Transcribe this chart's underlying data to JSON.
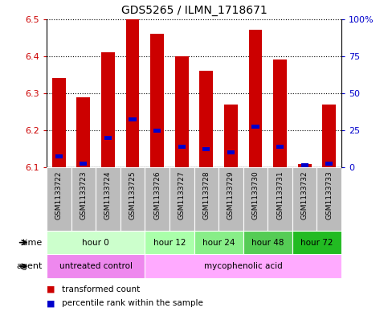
{
  "title": "GDS5265 / ILMN_1718671",
  "samples": [
    "GSM1133722",
    "GSM1133723",
    "GSM1133724",
    "GSM1133725",
    "GSM1133726",
    "GSM1133727",
    "GSM1133728",
    "GSM1133729",
    "GSM1133730",
    "GSM1133731",
    "GSM1133732",
    "GSM1133733"
  ],
  "transformed_counts": [
    6.34,
    6.29,
    6.41,
    6.5,
    6.46,
    6.4,
    6.36,
    6.27,
    6.47,
    6.39,
    6.11,
    6.27
  ],
  "percentile_ranks": [
    6.13,
    6.11,
    6.18,
    6.23,
    6.2,
    6.155,
    6.15,
    6.14,
    6.21,
    6.155,
    6.105,
    6.11
  ],
  "bar_bottom": 6.1,
  "ylim": [
    6.1,
    6.5
  ],
  "y2lim": [
    0,
    100
  ],
  "yticks": [
    6.1,
    6.2,
    6.3,
    6.4,
    6.5
  ],
  "y2ticks": [
    0,
    25,
    50,
    75,
    100
  ],
  "y2ticklabels": [
    "0",
    "25",
    "50",
    "75",
    "100%"
  ],
  "time_groups": [
    {
      "label": "hour 0",
      "start": 0,
      "end": 4,
      "color": "#ccffcc"
    },
    {
      "label": "hour 12",
      "start": 4,
      "end": 6,
      "color": "#aaffaa"
    },
    {
      "label": "hour 24",
      "start": 6,
      "end": 8,
      "color": "#88ee88"
    },
    {
      "label": "hour 48",
      "start": 8,
      "end": 10,
      "color": "#55cc55"
    },
    {
      "label": "hour 72",
      "start": 10,
      "end": 12,
      "color": "#22bb22"
    }
  ],
  "agent_groups": [
    {
      "label": "untreated control",
      "start": 0,
      "end": 4,
      "color": "#ee88ee"
    },
    {
      "label": "mycophenolic acid",
      "start": 4,
      "end": 12,
      "color": "#ffaaff"
    }
  ],
  "bar_color": "#cc0000",
  "blue_color": "#0000cc",
  "plot_bg_color": "#ffffff",
  "tick_label_color_left": "#cc0000",
  "tick_label_color_right": "#0000cc",
  "sample_bg_color": "#bbbbbb",
  "bar_width": 0.55,
  "legend_items": [
    {
      "color": "#cc0000",
      "label": "transformed count"
    },
    {
      "color": "#0000cc",
      "label": "percentile rank within the sample"
    }
  ],
  "time_label": "time",
  "agent_label": "agent"
}
